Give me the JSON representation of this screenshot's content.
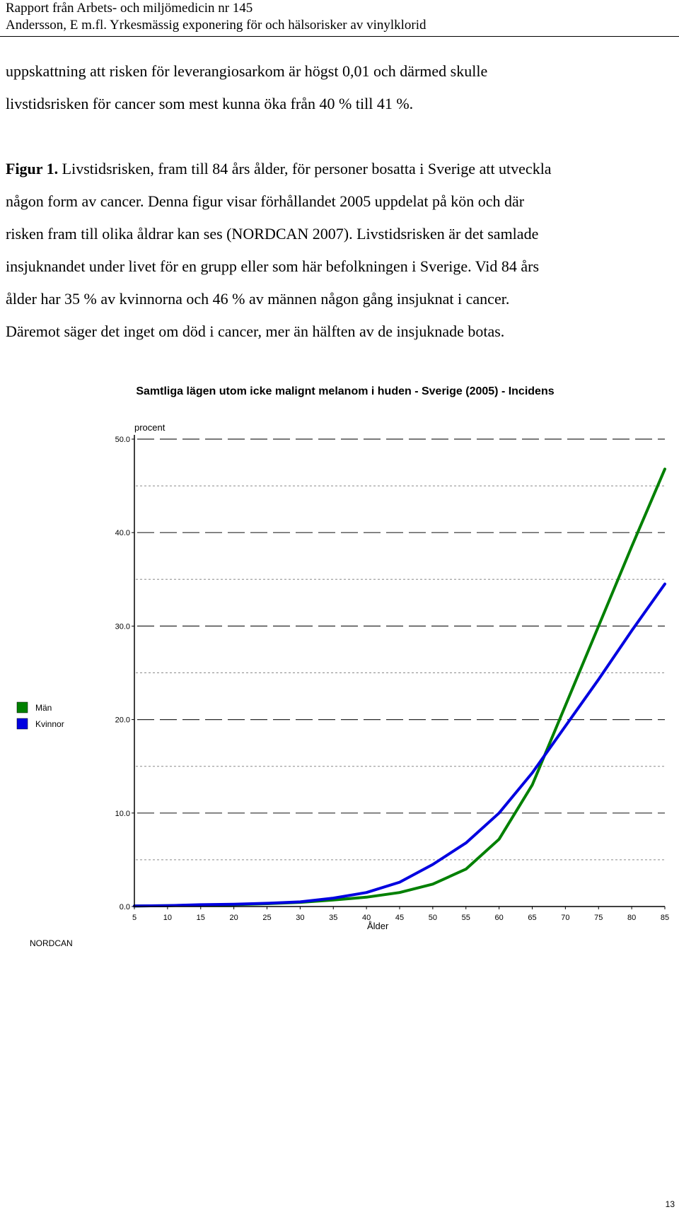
{
  "header": {
    "line1": "Rapport från Arbets- och miljömedicin nr 145",
    "line2": "Andersson, E m.fl. Yrkesmässig exponering för och hälsorisker av vinylklorid"
  },
  "body": {
    "para1_line1": "uppskattning att risken för leverangiosarkom är högst 0,01 och därmed skulle",
    "para1_line2": "livstidsrisken för cancer som mest kunna öka från 40 % till 41 %.",
    "caption_label": "Figur 1.",
    "caption_line1_rest": " Livstidsrisken, fram till 84 års ålder, för personer bosatta i Sverige att utveckla",
    "caption_line2": "någon form av cancer. Denna figur visar förhållandet 2005 uppdelat på kön och där",
    "caption_line3": "risken fram till olika åldrar kan ses (NORDCAN 2007). Livstidsrisken är det samlade",
    "caption_line4": "insjuknandet under livet för en grupp eller som här befolkningen i Sverige. Vid 84 års",
    "caption_line5": "ålder har 35 % av kvinnorna och 46 % av männen någon gång insjuknat i cancer.",
    "caption_line6": "Däremot säger det inget om död i cancer, mer än hälften av de insjuknade botas."
  },
  "chart_data": {
    "type": "line",
    "title": "Samtliga lägen utom icke malignt melanom i huden - Sverige (2005) - Incidens",
    "xlabel": "Ålder",
    "ylabel": "procent",
    "source": "NORDCAN",
    "xlim": [
      5,
      85
    ],
    "ylim": [
      0,
      50
    ],
    "x_ticks": [
      5,
      10,
      15,
      20,
      25,
      30,
      35,
      40,
      45,
      50,
      55,
      60,
      65,
      70,
      75,
      80,
      85
    ],
    "y_ticks": [
      0,
      10,
      20,
      30,
      40,
      50
    ],
    "y_tick_labels": [
      "0.0",
      "10.0",
      "20.0",
      "30.0",
      "40.0",
      "50.0"
    ],
    "grid": true,
    "legend_position": "left",
    "x": [
      5,
      10,
      15,
      20,
      25,
      30,
      35,
      40,
      45,
      50,
      55,
      60,
      65,
      70,
      75,
      80,
      85
    ],
    "series": [
      {
        "name": "Män",
        "color": "#008000",
        "values": [
          0.05,
          0.1,
          0.15,
          0.2,
          0.3,
          0.45,
          0.7,
          1.0,
          1.5,
          2.4,
          4.0,
          7.2,
          13.0,
          21.5,
          30.0,
          38.5,
          46.8
        ]
      },
      {
        "name": "Kvinnor",
        "color": "#0000e0",
        "values": [
          0.05,
          0.1,
          0.2,
          0.25,
          0.35,
          0.5,
          0.9,
          1.5,
          2.6,
          4.5,
          6.8,
          10.0,
          14.3,
          19.3,
          24.3,
          29.5,
          34.5
        ]
      }
    ]
  },
  "page_number": "13"
}
